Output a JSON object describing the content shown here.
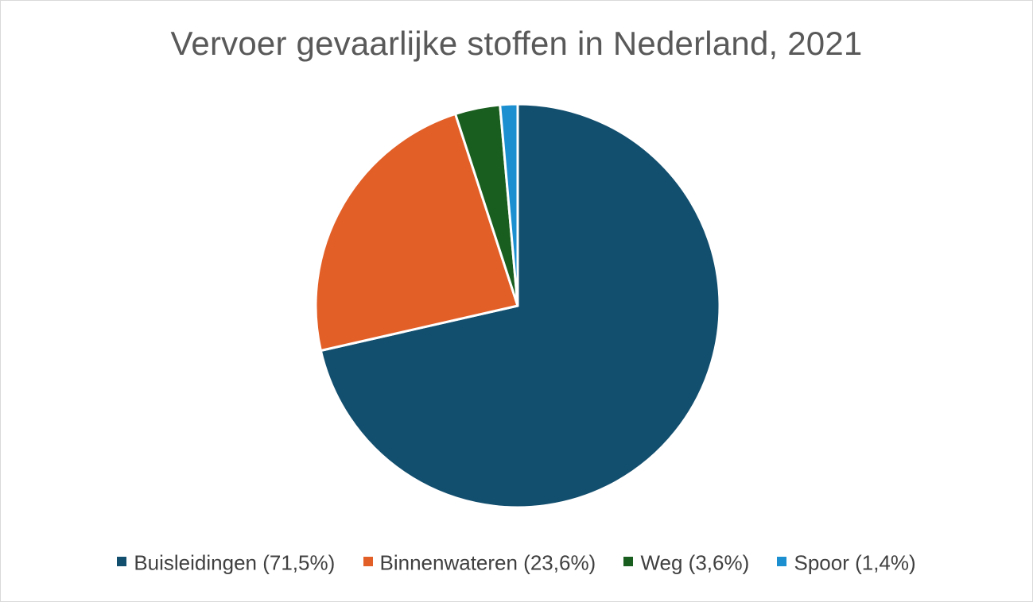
{
  "chart_data": {
    "type": "pie",
    "title": "Vervoer gevaarlijke stoffen in Nederland, 2021",
    "legend_position": "bottom",
    "slices": [
      {
        "name": "Buisleidingen",
        "value": 71.5,
        "label": "Buisleidingen (71,5%)",
        "color": "#124e6e"
      },
      {
        "name": "Binnenwateren",
        "value": 23.6,
        "label": "Binnenwateren (23,6%)",
        "color": "#e25f28"
      },
      {
        "name": "Weg",
        "value": 3.6,
        "label": "Weg (3,6%)",
        "color": "#195e1e"
      },
      {
        "name": "Spoor",
        "value": 1.4,
        "label": "Spoor (1,4%)",
        "color": "#1b8fd0"
      }
    ],
    "border_color": "#ffffff"
  }
}
